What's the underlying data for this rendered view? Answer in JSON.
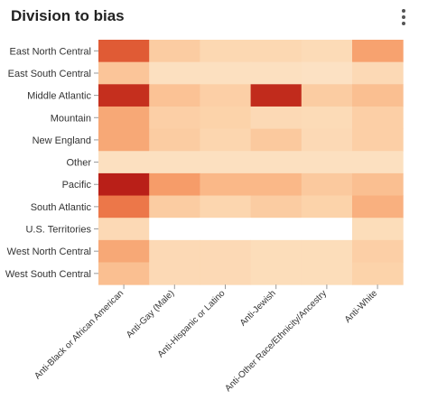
{
  "title": "Division to bias",
  "menu_icon": "kebab-menu-icon",
  "chart_data": {
    "type": "heatmap",
    "title": "Division to bias",
    "xlabel": "",
    "ylabel": "",
    "rows": [
      "East North Central",
      "East South Central",
      "Middle Atlantic",
      "Mountain",
      "New England",
      "Other",
      "Pacific",
      "South Atlantic",
      "U.S. Territories",
      "West North Central",
      "West South Central"
    ],
    "columns": [
      "Anti-Black or African American",
      "Anti-Gay (Male)",
      "Anti-Hispanic or Latino",
      "Anti-Jewish",
      "Anti-Other Race/Ethnicity/Ancestry",
      "Anti-White"
    ],
    "values": [
      [
        0.72,
        0.22,
        0.15,
        0.15,
        0.13,
        0.45
      ],
      [
        0.26,
        0.1,
        0.1,
        0.1,
        0.09,
        0.14
      ],
      [
        0.88,
        0.28,
        0.2,
        0.9,
        0.22,
        0.3
      ],
      [
        0.42,
        0.2,
        0.18,
        0.14,
        0.13,
        0.2
      ],
      [
        0.42,
        0.22,
        0.16,
        0.24,
        0.14,
        0.2
      ],
      [
        0.1,
        0.1,
        0.1,
        0.1,
        0.1,
        0.1
      ],
      [
        0.95,
        0.48,
        0.34,
        0.34,
        0.24,
        0.3
      ],
      [
        0.62,
        0.22,
        0.16,
        0.22,
        0.18,
        0.38
      ],
      [
        0.14,
        null,
        null,
        null,
        null,
        0.12
      ],
      [
        0.42,
        0.14,
        0.14,
        0.12,
        0.12,
        0.2
      ],
      [
        0.3,
        0.14,
        0.14,
        0.12,
        0.12,
        0.18
      ]
    ],
    "color_scale": [
      "#fdf0dc",
      "#fcd5ad",
      "#fab98a",
      "#f59864",
      "#e96a3e",
      "#cd3a22",
      "#b01414"
    ],
    "empty_color": "#ffffff",
    "grid": false,
    "legend": "none"
  }
}
